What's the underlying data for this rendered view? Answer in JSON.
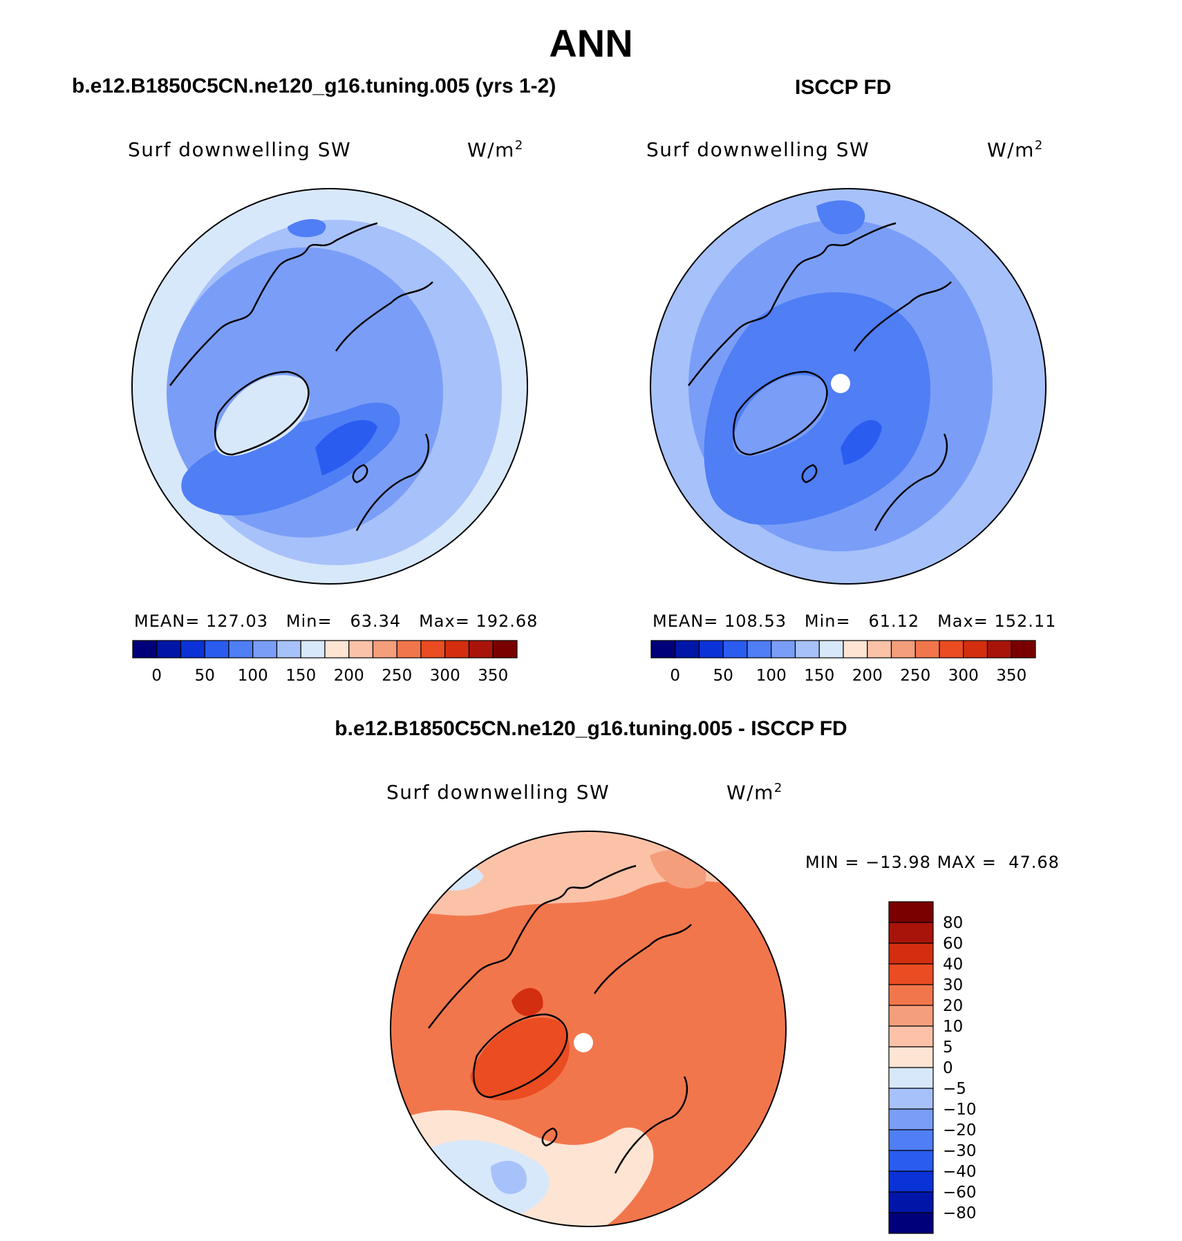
{
  "figure": {
    "title": "ANN"
  },
  "panels": {
    "model": {
      "title": "b.e12.B1850C5CN.ne120_g16.tuning.005 (yrs 1-2)",
      "variable": "Surf downwelling SW",
      "units_base": "W/m",
      "units_exp": "2",
      "stats": {
        "mean_label": "MEAN=",
        "mean": "127.03",
        "min_label": "Min=",
        "min": "63.34",
        "max_label": "Max=",
        "max": "192.68"
      }
    },
    "obs": {
      "title": "ISCCP FD",
      "variable": "Surf downwelling SW",
      "units_base": "W/m",
      "units_exp": "2",
      "stats": {
        "mean_label": "MEAN=",
        "mean": "108.53",
        "min_label": "Min=",
        "min": "61.12",
        "max_label": "Max=",
        "max": "152.11"
      }
    },
    "diff": {
      "title": "b.e12.B1850C5CN.ne120_g16.tuning.005 - ISCCP FD",
      "variable": "Surf downwelling SW",
      "units_base": "W/m",
      "units_exp": "2",
      "stats": {
        "min_label": "MIN =",
        "min": "−13.98",
        "max_label": "MAX =",
        "max": "47.68"
      }
    }
  },
  "chart_data": [
    {
      "type": "heatmap",
      "projection": "north-polar-stereographic",
      "title": "b.e12.B1850C5CN.ne120_g16.tuning.005 (yrs 1-2)",
      "variable": "Surf downwelling SW",
      "units": "W/m2",
      "mean": 127.03,
      "min": 63.34,
      "max": 192.68,
      "colorbar": {
        "orientation": "horizontal",
        "levels": [
          0,
          25,
          50,
          75,
          100,
          125,
          150,
          175,
          200,
          225,
          250,
          275,
          300,
          325,
          350
        ],
        "tick_labels": [
          "0",
          "50",
          "100",
          "150",
          "200",
          "250",
          "300",
          "350"
        ],
        "colors": [
          "#00007a",
          "#0016a8",
          "#0a32d6",
          "#2a5cf0",
          "#4f7ef5",
          "#7a9ef7",
          "#a7c1fa",
          "#d8e8fb",
          "#fde4d3",
          "#fbc2a8",
          "#f59e7c",
          "#f2764c",
          "#eb4c22",
          "#d32e0f",
          "#a8140a",
          "#7a0000"
        ]
      }
    },
    {
      "type": "heatmap",
      "projection": "north-polar-stereographic",
      "title": "ISCCP FD",
      "variable": "Surf downwelling SW",
      "units": "W/m2",
      "mean": 108.53,
      "min": 61.12,
      "max": 152.11,
      "colorbar": {
        "orientation": "horizontal",
        "levels": [
          0,
          25,
          50,
          75,
          100,
          125,
          150,
          175,
          200,
          225,
          250,
          275,
          300,
          325,
          350
        ],
        "tick_labels": [
          "0",
          "50",
          "100",
          "150",
          "200",
          "250",
          "300",
          "350"
        ],
        "colors": [
          "#00007a",
          "#0016a8",
          "#0a32d6",
          "#2a5cf0",
          "#4f7ef5",
          "#7a9ef7",
          "#a7c1fa",
          "#d8e8fb",
          "#fde4d3",
          "#fbc2a8",
          "#f59e7c",
          "#f2764c",
          "#eb4c22",
          "#d32e0f",
          "#a8140a",
          "#7a0000"
        ]
      }
    },
    {
      "type": "heatmap",
      "projection": "north-polar-stereographic",
      "title": "b.e12.B1850C5CN.ne120_g16.tuning.005 - ISCCP FD",
      "variable": "Surf downwelling SW",
      "units": "W/m2",
      "min": -13.98,
      "max": 47.68,
      "colorbar": {
        "orientation": "vertical",
        "tick_labels": [
          "80",
          "60",
          "40",
          "30",
          "20",
          "10",
          "5",
          "0",
          "−5",
          "−10",
          "−20",
          "−30",
          "−40",
          "−60",
          "−80"
        ],
        "colors": [
          "#7a0000",
          "#a8140a",
          "#d32e0f",
          "#eb4c22",
          "#f2764c",
          "#f59e7c",
          "#fbc2a8",
          "#fde4d3",
          "#d8e8fb",
          "#a7c1fa",
          "#7a9ef7",
          "#4f7ef5",
          "#2a5cf0",
          "#0a32d6",
          "#0016a8",
          "#00007a"
        ]
      }
    }
  ]
}
